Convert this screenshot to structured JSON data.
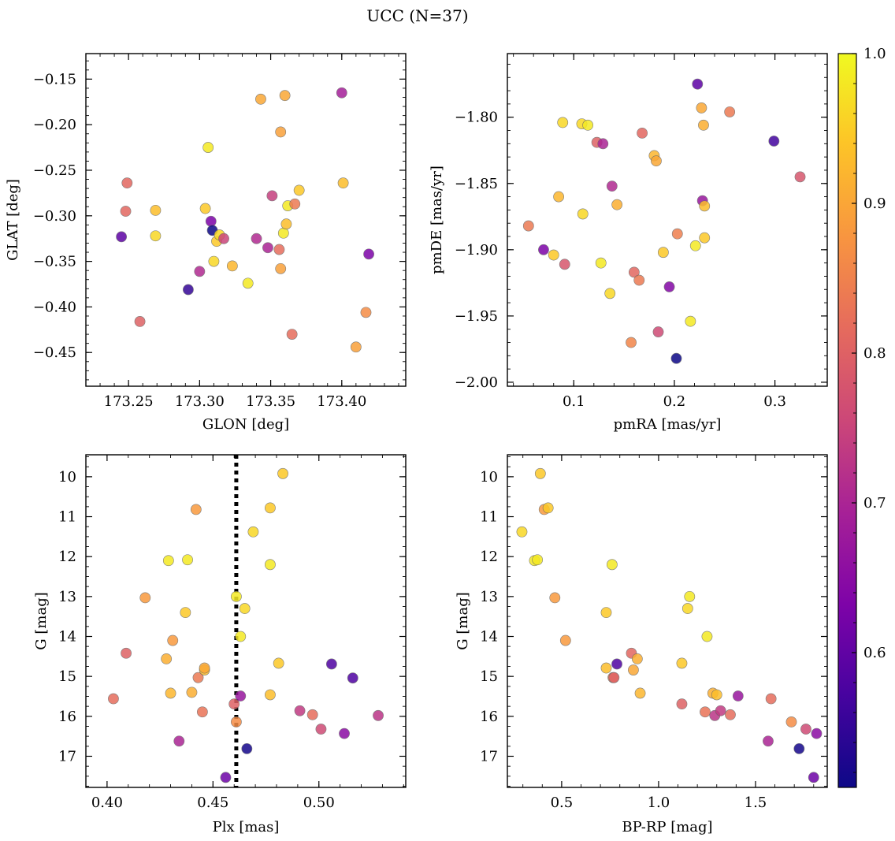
{
  "figure": {
    "title": "UCC (N=37)",
    "colorbar": {
      "min": 0.51,
      "max": 1.0,
      "ticks": [
        "0.6",
        "0.7",
        "0.8",
        "0.9",
        "1.0"
      ],
      "tick_values": [
        0.6,
        0.7,
        0.8,
        0.9,
        1.0
      ],
      "colormap": "plasma"
    }
  },
  "chart_data": [
    {
      "type": "scatter",
      "xlabel": "GLON [deg]",
      "ylabel": "GLAT [deg]",
      "xlim": [
        173.22,
        173.445
      ],
      "ylim": [
        -0.487,
        -0.122
      ],
      "xticks": [
        173.25,
        173.3,
        173.35,
        173.4
      ],
      "xtick_labels": [
        "173.25",
        "173.30",
        "173.35",
        "173.40"
      ],
      "yticks": [
        -0.45,
        -0.4,
        -0.35,
        -0.3,
        -0.25,
        -0.2,
        -0.15
      ],
      "ytick_labels": [
        "−0.45",
        "−0.40",
        "−0.35",
        "−0.30",
        "−0.25",
        "−0.20",
        "−0.15"
      ],
      "points": [
        {
          "x": 173.245,
          "y": -0.323,
          "c": 0.6
        },
        {
          "x": 173.249,
          "y": -0.264,
          "c": 0.83
        },
        {
          "x": 173.248,
          "y": -0.295,
          "c": 0.83
        },
        {
          "x": 173.258,
          "y": -0.416,
          "c": 0.82
        },
        {
          "x": 173.269,
          "y": -0.294,
          "c": 0.96
        },
        {
          "x": 173.269,
          "y": -0.322,
          "c": 0.98
        },
        {
          "x": 173.292,
          "y": -0.381,
          "c": 0.56
        },
        {
          "x": 173.3,
          "y": -0.361,
          "c": 0.72
        },
        {
          "x": 173.304,
          "y": -0.292,
          "c": 0.97
        },
        {
          "x": 173.306,
          "y": -0.225,
          "c": 0.99
        },
        {
          "x": 173.308,
          "y": -0.306,
          "c": 0.64
        },
        {
          "x": 173.309,
          "y": -0.316,
          "c": 0.52
        },
        {
          "x": 173.31,
          "y": -0.35,
          "c": 0.98
        },
        {
          "x": 173.312,
          "y": -0.328,
          "c": 0.97
        },
        {
          "x": 173.314,
          "y": -0.321,
          "c": 0.98
        },
        {
          "x": 173.317,
          "y": -0.325,
          "c": 0.77
        },
        {
          "x": 173.323,
          "y": -0.355,
          "c": 0.95
        },
        {
          "x": 173.334,
          "y": -0.374,
          "c": 0.99
        },
        {
          "x": 173.34,
          "y": -0.325,
          "c": 0.72
        },
        {
          "x": 173.343,
          "y": -0.172,
          "c": 0.93
        },
        {
          "x": 173.348,
          "y": -0.335,
          "c": 0.71
        },
        {
          "x": 173.351,
          "y": -0.278,
          "c": 0.76
        },
        {
          "x": 173.356,
          "y": -0.337,
          "c": 0.84
        },
        {
          "x": 173.357,
          "y": -0.358,
          "c": 0.92
        },
        {
          "x": 173.357,
          "y": -0.208,
          "c": 0.92
        },
        {
          "x": 173.359,
          "y": -0.319,
          "c": 0.99
        },
        {
          "x": 173.36,
          "y": -0.168,
          "c": 0.93
        },
        {
          "x": 173.361,
          "y": -0.309,
          "c": 0.96
        },
        {
          "x": 173.362,
          "y": -0.289,
          "c": 0.99
        },
        {
          "x": 173.365,
          "y": -0.43,
          "c": 0.84
        },
        {
          "x": 173.367,
          "y": -0.287,
          "c": 0.86
        },
        {
          "x": 173.37,
          "y": -0.272,
          "c": 0.97
        },
        {
          "x": 173.4,
          "y": -0.165,
          "c": 0.7
        },
        {
          "x": 173.401,
          "y": -0.264,
          "c": 0.96
        },
        {
          "x": 173.41,
          "y": -0.444,
          "c": 0.92
        },
        {
          "x": 173.417,
          "y": -0.406,
          "c": 0.89
        },
        {
          "x": 173.419,
          "y": -0.342,
          "c": 0.64
        }
      ]
    },
    {
      "type": "scatter",
      "xlabel": "pmRA [mas/yr]",
      "ylabel": "pmDE [mas/yr]",
      "xlim": [
        0.034,
        0.352
      ],
      "ylim": [
        -2.003,
        -1.752
      ],
      "xticks": [
        0.1,
        0.2,
        0.3
      ],
      "xtick_labels": [
        "0.1",
        "0.2",
        "0.3"
      ],
      "yticks": [
        -2.0,
        -1.95,
        -1.9,
        -1.85,
        -1.8
      ],
      "ytick_labels": [
        "−2.00",
        "−1.95",
        "−1.90",
        "−1.85",
        "−1.80"
      ],
      "points": [
        {
          "x": 0.055,
          "y": -1.882,
          "c": 0.86
        },
        {
          "x": 0.07,
          "y": -1.9,
          "c": 0.64
        },
        {
          "x": 0.08,
          "y": -1.904,
          "c": 0.97
        },
        {
          "x": 0.085,
          "y": -1.86,
          "c": 0.95
        },
        {
          "x": 0.089,
          "y": -1.804,
          "c": 0.98
        },
        {
          "x": 0.091,
          "y": -1.911,
          "c": 0.8
        },
        {
          "x": 0.108,
          "y": -1.805,
          "c": 0.98
        },
        {
          "x": 0.109,
          "y": -1.873,
          "c": 0.98
        },
        {
          "x": 0.114,
          "y": -1.806,
          "c": 0.99
        },
        {
          "x": 0.123,
          "y": -1.819,
          "c": 0.82
        },
        {
          "x": 0.127,
          "y": -1.91,
          "c": 0.99
        },
        {
          "x": 0.129,
          "y": -1.82,
          "c": 0.71
        },
        {
          "x": 0.136,
          "y": -1.933,
          "c": 0.98
        },
        {
          "x": 0.138,
          "y": -1.852,
          "c": 0.72
        },
        {
          "x": 0.143,
          "y": -1.866,
          "c": 0.94
        },
        {
          "x": 0.157,
          "y": -1.97,
          "c": 0.88
        },
        {
          "x": 0.16,
          "y": -1.917,
          "c": 0.83
        },
        {
          "x": 0.165,
          "y": -1.923,
          "c": 0.86
        },
        {
          "x": 0.168,
          "y": -1.812,
          "c": 0.83
        },
        {
          "x": 0.18,
          "y": -1.829,
          "c": 0.95
        },
        {
          "x": 0.182,
          "y": -1.833,
          "c": 0.93
        },
        {
          "x": 0.184,
          "y": -1.962,
          "c": 0.78
        },
        {
          "x": 0.189,
          "y": -1.902,
          "c": 0.97
        },
        {
          "x": 0.195,
          "y": -1.928,
          "c": 0.65
        },
        {
          "x": 0.202,
          "y": -1.982,
          "c": 0.52
        },
        {
          "x": 0.203,
          "y": -1.888,
          "c": 0.87
        },
        {
          "x": 0.216,
          "y": -1.954,
          "c": 0.99
        },
        {
          "x": 0.221,
          "y": -1.897,
          "c": 0.99
        },
        {
          "x": 0.223,
          "y": -1.775,
          "c": 0.6
        },
        {
          "x": 0.227,
          "y": -1.793,
          "c": 0.93
        },
        {
          "x": 0.228,
          "y": -1.863,
          "c": 0.68
        },
        {
          "x": 0.229,
          "y": -1.806,
          "c": 0.94
        },
        {
          "x": 0.23,
          "y": -1.867,
          "c": 0.96
        },
        {
          "x": 0.23,
          "y": -1.891,
          "c": 0.97
        },
        {
          "x": 0.255,
          "y": -1.796,
          "c": 0.86
        },
        {
          "x": 0.299,
          "y": -1.818,
          "c": 0.57
        },
        {
          "x": 0.325,
          "y": -1.845,
          "c": 0.8
        }
      ]
    },
    {
      "type": "scatter",
      "xlabel": "Plx [mas]",
      "ylabel": "G [mag]",
      "xlim": [
        0.39,
        0.541
      ],
      "ylim": [
        17.78,
        9.45
      ],
      "y_inverted": true,
      "xticks": [
        0.4,
        0.45,
        0.5
      ],
      "xtick_labels": [
        "0.40",
        "0.45",
        "0.50"
      ],
      "yticks": [
        10,
        11,
        12,
        13,
        14,
        15,
        16,
        17
      ],
      "ytick_labels": [
        "10",
        "11",
        "12",
        "13",
        "14",
        "15",
        "16",
        "17"
      ],
      "vline": 0.461,
      "points": [
        {
          "x": 0.403,
          "y": 15.56,
          "c": 0.84
        },
        {
          "x": 0.409,
          "y": 14.42,
          "c": 0.82
        },
        {
          "x": 0.418,
          "y": 13.03,
          "c": 0.91
        },
        {
          "x": 0.428,
          "y": 14.56,
          "c": 0.94
        },
        {
          "x": 0.429,
          "y": 12.1,
          "c": 0.99
        },
        {
          "x": 0.43,
          "y": 15.42,
          "c": 0.95
        },
        {
          "x": 0.431,
          "y": 14.1,
          "c": 0.91
        },
        {
          "x": 0.434,
          "y": 16.62,
          "c": 0.71
        },
        {
          "x": 0.437,
          "y": 13.4,
          "c": 0.97
        },
        {
          "x": 0.438,
          "y": 12.08,
          "c": 0.99
        },
        {
          "x": 0.44,
          "y": 15.4,
          "c": 0.94
        },
        {
          "x": 0.442,
          "y": 10.82,
          "c": 0.91
        },
        {
          "x": 0.443,
          "y": 15.03,
          "c": 0.86
        },
        {
          "x": 0.445,
          "y": 15.89,
          "c": 0.85
        },
        {
          "x": 0.446,
          "y": 14.84,
          "c": 0.96
        },
        {
          "x": 0.446,
          "y": 14.79,
          "c": 0.93
        },
        {
          "x": 0.456,
          "y": 17.53,
          "c": 0.62
        },
        {
          "x": 0.461,
          "y": 13.0,
          "c": 0.99
        },
        {
          "x": 0.46,
          "y": 15.69,
          "c": 0.82
        },
        {
          "x": 0.461,
          "y": 16.14,
          "c": 0.89
        },
        {
          "x": 0.463,
          "y": 15.49,
          "c": 0.68
        },
        {
          "x": 0.463,
          "y": 14.0,
          "c": 0.99
        },
        {
          "x": 0.465,
          "y": 13.3,
          "c": 0.98
        },
        {
          "x": 0.466,
          "y": 16.81,
          "c": 0.54
        },
        {
          "x": 0.469,
          "y": 11.38,
          "c": 0.98
        },
        {
          "x": 0.477,
          "y": 10.78,
          "c": 0.97
        },
        {
          "x": 0.477,
          "y": 12.2,
          "c": 0.99
        },
        {
          "x": 0.477,
          "y": 15.46,
          "c": 0.96
        },
        {
          "x": 0.481,
          "y": 14.67,
          "c": 0.97
        },
        {
          "x": 0.483,
          "y": 9.92,
          "c": 0.97
        },
        {
          "x": 0.491,
          "y": 15.86,
          "c": 0.75
        },
        {
          "x": 0.497,
          "y": 15.96,
          "c": 0.84
        },
        {
          "x": 0.501,
          "y": 16.32,
          "c": 0.78
        },
        {
          "x": 0.506,
          "y": 14.69,
          "c": 0.58
        },
        {
          "x": 0.512,
          "y": 16.43,
          "c": 0.66
        },
        {
          "x": 0.516,
          "y": 15.04,
          "c": 0.58
        },
        {
          "x": 0.528,
          "y": 15.98,
          "c": 0.74
        }
      ]
    },
    {
      "type": "scatter",
      "xlabel": "BP-RP [mag]",
      "ylabel": "G [mag]",
      "xlim": [
        0.22,
        1.87
      ],
      "ylim": [
        17.78,
        9.45
      ],
      "y_inverted": true,
      "xticks": [
        0.5,
        1.0,
        1.5
      ],
      "xtick_labels": [
        "0.5",
        "1.0",
        "1.5"
      ],
      "yticks": [
        10,
        11,
        12,
        13,
        14,
        15,
        16,
        17
      ],
      "ytick_labels": [
        "10",
        "11",
        "12",
        "13",
        "14",
        "15",
        "16",
        "17"
      ],
      "points": [
        {
          "x": 0.295,
          "y": 11.38,
          "c": 0.98
        },
        {
          "x": 0.36,
          "y": 12.1,
          "c": 0.99
        },
        {
          "x": 0.375,
          "y": 12.08,
          "c": 0.99
        },
        {
          "x": 0.39,
          "y": 9.92,
          "c": 0.97
        },
        {
          "x": 0.41,
          "y": 10.82,
          "c": 0.91
        },
        {
          "x": 0.43,
          "y": 10.78,
          "c": 0.97
        },
        {
          "x": 0.465,
          "y": 13.03,
          "c": 0.91
        },
        {
          "x": 0.52,
          "y": 14.1,
          "c": 0.91
        },
        {
          "x": 0.73,
          "y": 13.4,
          "c": 0.97
        },
        {
          "x": 0.73,
          "y": 14.79,
          "c": 0.96
        },
        {
          "x": 0.76,
          "y": 12.2,
          "c": 0.99
        },
        {
          "x": 0.765,
          "y": 15.03,
          "c": 0.86
        },
        {
          "x": 0.77,
          "y": 15.03,
          "c": 0.82
        },
        {
          "x": 0.785,
          "y": 14.69,
          "c": 0.58
        },
        {
          "x": 0.86,
          "y": 14.42,
          "c": 0.83
        },
        {
          "x": 0.87,
          "y": 14.84,
          "c": 0.93
        },
        {
          "x": 0.89,
          "y": 14.56,
          "c": 0.94
        },
        {
          "x": 0.905,
          "y": 15.42,
          "c": 0.95
        },
        {
          "x": 1.12,
          "y": 14.67,
          "c": 0.97
        },
        {
          "x": 1.12,
          "y": 15.69,
          "c": 0.82
        },
        {
          "x": 1.15,
          "y": 13.3,
          "c": 0.98
        },
        {
          "x": 1.16,
          "y": 13.0,
          "c": 0.99
        },
        {
          "x": 1.24,
          "y": 15.89,
          "c": 0.85
        },
        {
          "x": 1.25,
          "y": 14.0,
          "c": 0.99
        },
        {
          "x": 1.28,
          "y": 15.42,
          "c": 0.94
        },
        {
          "x": 1.29,
          "y": 15.98,
          "c": 0.74
        },
        {
          "x": 1.3,
          "y": 15.46,
          "c": 0.96
        },
        {
          "x": 1.32,
          "y": 15.86,
          "c": 0.75
        },
        {
          "x": 1.37,
          "y": 15.96,
          "c": 0.84
        },
        {
          "x": 1.41,
          "y": 15.49,
          "c": 0.68
        },
        {
          "x": 1.565,
          "y": 16.62,
          "c": 0.71
        },
        {
          "x": 1.58,
          "y": 15.56,
          "c": 0.84
        },
        {
          "x": 1.685,
          "y": 16.14,
          "c": 0.89
        },
        {
          "x": 1.725,
          "y": 16.81,
          "c": 0.54
        },
        {
          "x": 1.76,
          "y": 16.32,
          "c": 0.78
        },
        {
          "x": 1.8,
          "y": 17.53,
          "c": 0.62
        },
        {
          "x": 1.815,
          "y": 16.43,
          "c": 0.66
        }
      ]
    }
  ]
}
